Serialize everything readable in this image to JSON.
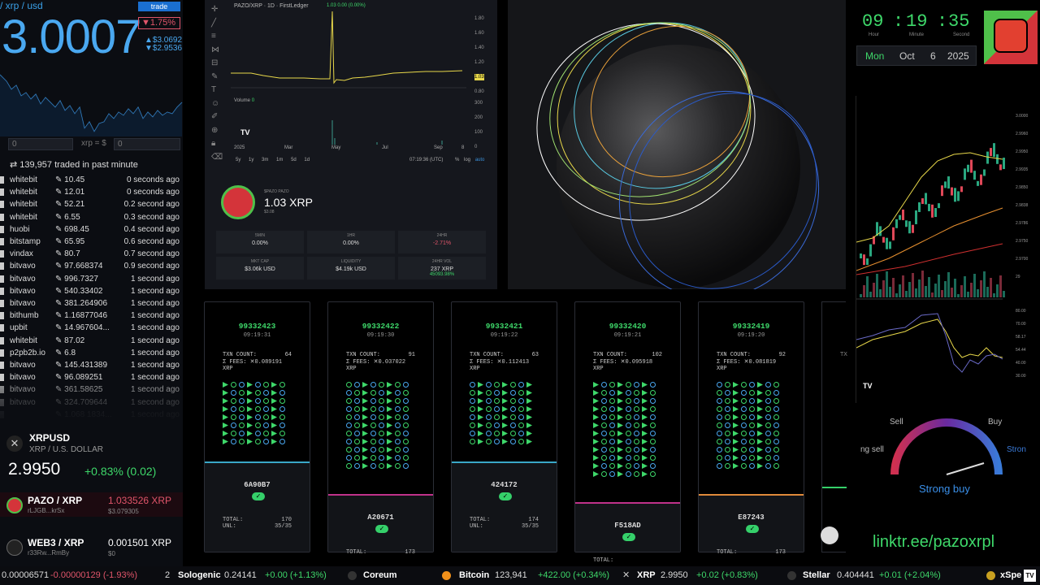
{
  "left": {
    "pair": "/ xrp / usd",
    "price": "3.0007",
    "trade_label": "trade",
    "change": "▼1.75%",
    "high": "▲$3.0692",
    "low": "▼$2.9536",
    "conv_left": "0",
    "conv_mid": "xrp = $",
    "conv_right": "0",
    "traded_label": "139,957  traded in past minute",
    "trades": [
      {
        "ex": "whitebit",
        "p": "10.45",
        "t": "0 seconds ago"
      },
      {
        "ex": "whitebit",
        "p": "12.01",
        "t": "0 seconds ago"
      },
      {
        "ex": "whitebit",
        "p": "52.21",
        "t": "0.2 second ago"
      },
      {
        "ex": "whitebit",
        "p": "6.55",
        "t": "0.3 second ago"
      },
      {
        "ex": "huobi",
        "p": "698.45",
        "t": "0.4 second ago"
      },
      {
        "ex": "bitstamp",
        "p": "65.95",
        "t": "0.6 second ago"
      },
      {
        "ex": "vindax",
        "p": "80.7",
        "t": "0.7 second ago"
      },
      {
        "ex": "bitvavo",
        "p": "97.668374",
        "t": "0.9 second ago"
      },
      {
        "ex": "bitvavo",
        "p": "996.7327",
        "t": "1 second ago"
      },
      {
        "ex": "bitvavo",
        "p": "540.33402",
        "t": "1 second ago"
      },
      {
        "ex": "bitvavo",
        "p": "381.264906",
        "t": "1 second ago"
      },
      {
        "ex": "bithumb",
        "p": "1.16877046",
        "t": "1 second ago"
      },
      {
        "ex": "upbit",
        "p": "14.967604...",
        "t": "1 second ago"
      },
      {
        "ex": "whitebit",
        "p": "87.02",
        "t": "1 second ago"
      },
      {
        "ex": "p2pb2b.io",
        "p": "6.8",
        "t": "1 second ago"
      },
      {
        "ex": "bitvavo",
        "p": "145.431389",
        "t": "1 second ago"
      },
      {
        "ex": "bitvavo",
        "p": "96.089251",
        "t": "1 second ago"
      },
      {
        "ex": "bitvavo",
        "p": "361.58625",
        "t": "1 second ago"
      },
      {
        "ex": "bitvavo",
        "p": "324.709644",
        "t": "1 second ago"
      },
      {
        "ex": "",
        "p": "1.068 1834...",
        "t": "1 second ago"
      }
    ],
    "xrpusd_symbol": "XRPUSD",
    "xrpusd_name": "XRP / U.S. DOLLAR",
    "xrpusd_price": "2.9950",
    "xrpusd_change": "+0.83% (0.02)",
    "coins": [
      {
        "name": "PAZO",
        "quote": "XRP",
        "addr": "rLJGB...krSx",
        "price": "1.033526 XRP",
        "usd": "$3.079305"
      },
      {
        "name": "WEB3",
        "quote": "XRP",
        "addr": "r33Rw...RmBy",
        "price": "0.001501 XRP",
        "usd": "$0"
      }
    ]
  },
  "chart": {
    "title": "PAZO/XRP · 1D · FirstLedger",
    "ohlc": "1.03  0.00 (0.00%)",
    "yticks": [
      "1.80",
      "1.60",
      "1.40",
      "1.20",
      "1.03",
      "0.80"
    ],
    "volume_label": "Volume",
    "volume_value": "0",
    "vticks": [
      "300",
      "200",
      "100",
      "0"
    ],
    "xticks": [
      "2025",
      "Mar",
      "May",
      "Jul",
      "Sep",
      "8"
    ],
    "ranges": [
      "5y",
      "1y",
      "3m",
      "1m",
      "5d",
      "1d"
    ],
    "time": "07:19:36 (UTC)",
    "opts": [
      "%",
      "log",
      "auto"
    ],
    "token_sub": "$PAZO PAZO",
    "token_price": "1.03 XRP",
    "token_usd": "$3.08",
    "stats": [
      {
        "label": "5MIN",
        "value": "0.00%"
      },
      {
        "label": "1HR",
        "value": "0.00%"
      },
      {
        "label": "24HR",
        "value": "-2.71%"
      },
      {
        "label": "MKT CAP",
        "value": "$3.06k USD"
      },
      {
        "label": "LIQUIDITY",
        "value": "$4.19k USD"
      },
      {
        "label": "24HR VOL",
        "value": "237 XRP",
        "extra": "45093.98%"
      }
    ]
  },
  "clock": {
    "h": "09",
    "m": "19",
    "s": "35",
    "hl": "Hour",
    "ml": "Minute",
    "sl": "Second",
    "day": "Mon",
    "month": "Oct",
    "date": "6",
    "year": "2025"
  },
  "blocks": [
    {
      "num": "99332423",
      "time": "09:19:31",
      "txn": "64",
      "fees": "0.089191",
      "hash": "6A90B7",
      "total": "170",
      "unl": "35/35",
      "bar": "#3aa8c8"
    },
    {
      "num": "99332422",
      "time": "09:19:30",
      "txn": "91",
      "fees": "0.037022",
      "hash": "A20671",
      "total": "173",
      "unl": "",
      "bar": "#c0328a"
    },
    {
      "num": "99332421",
      "time": "09:19:22",
      "txn": "63",
      "fees": "0.112413",
      "hash": "424172",
      "total": "174",
      "unl": "35/35",
      "bar": "#3aa8c8"
    },
    {
      "num": "99332420",
      "time": "09:19:21",
      "txn": "102",
      "fees": "0.095918",
      "hash": "F518AD",
      "total": "",
      "unl": "",
      "bar": "#c0328a"
    },
    {
      "num": "99332419",
      "time": "09:19:20",
      "txn": "92",
      "fees": "0.081819",
      "hash": "E87243",
      "total": "173",
      "unl": "",
      "bar": "#e08a3a"
    }
  ],
  "block_labels": {
    "txn": "TXN COUNT:",
    "fees": "Σ FEES:",
    "total": "TOTAL:",
    "unl": "UNL:",
    "xrp": "XRP"
  },
  "right": {
    "yticks": [
      "3.0000",
      "2.9960",
      "2.9950",
      "2.9935",
      "2.9850",
      "2.9838",
      "2.9786",
      "2.9750",
      "2.9700",
      "29"
    ],
    "rsi_ticks": [
      "80.00",
      "70.00",
      "58.17",
      "54.44",
      "40.00",
      "30.00"
    ],
    "sell": "Sell",
    "buy": "Buy",
    "strong_sell": "ng sell",
    "strong_right": "Stron",
    "verdict": "Strong buy",
    "link": "linktr.ee/pazoxrpl"
  },
  "ticker": [
    {
      "name": "",
      "price": "0.00006571",
      "chg": "-0.00000129 (-1.93%)",
      "dir": "neg"
    },
    {
      "name": "Sologenic",
      "price": "0.24141",
      "chg": "+0.00 (+1.13%)",
      "dir": "pos",
      "pre": "2"
    },
    {
      "name": "Coreum",
      "price": "",
      "chg": "",
      "dir": "pos"
    },
    {
      "name": "Bitcoin",
      "price": "123,941",
      "chg": "+422.00 (+0.34%)",
      "dir": "pos"
    },
    {
      "name": "XRP",
      "price": "2.9950",
      "chg": "+0.02 (+0.83%)",
      "dir": "pos"
    },
    {
      "name": "Stellar",
      "price": "0.404441",
      "chg": "+0.01 (+2.04%)",
      "dir": "pos"
    },
    {
      "name": "xSpe",
      "price": "",
      "chg": "",
      "dir": "pos"
    }
  ]
}
